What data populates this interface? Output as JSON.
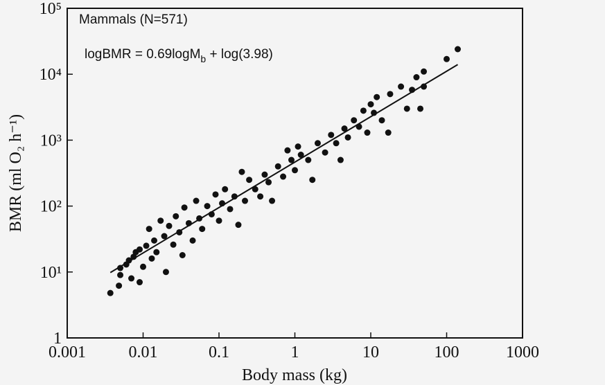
{
  "chart_data": {
    "type": "scatter",
    "title": "Mammals (N=571)",
    "equation": [
      "logBMR = 0.69logM",
      "b",
      " + log(3.98)"
    ],
    "x_label": "Body mass (kg)",
    "y_label": "BMR (ml O₂ h⁻¹)",
    "x_log": true,
    "y_log": true,
    "xlim": [
      0.001,
      1000
    ],
    "xticks": [
      0.001,
      0.01,
      0.1,
      1,
      10,
      100,
      1000
    ],
    "ylim": [
      1,
      100000
    ],
    "yticks": [
      1,
      {
        "value": 10,
        "label": "10¹"
      },
      {
        "value": 100,
        "label": "10²"
      },
      {
        "value": 1000,
        "label": "10³"
      },
      {
        "value": 10000,
        "label": "10⁴"
      },
      {
        "value": 100000,
        "label": "10⁵"
      }
    ],
    "color": "#111111",
    "fit_line": {
      "x": [
        0.0037,
        140
      ],
      "y": [
        9.8,
        14000
      ]
    },
    "x": [
      0.0037,
      0.0048,
      0.005,
      0.005,
      0.006,
      0.0065,
      0.007,
      0.0075,
      0.008,
      0.009,
      0.009,
      0.01,
      0.011,
      0.012,
      0.013,
      0.014,
      0.015,
      0.017,
      0.019,
      0.02,
      0.022,
      0.025,
      0.027,
      0.03,
      0.033,
      0.035,
      0.04,
      0.045,
      0.05,
      0.055,
      0.06,
      0.07,
      0.08,
      0.09,
      0.1,
      0.11,
      0.12,
      0.14,
      0.16,
      0.18,
      0.2,
      0.22,
      0.25,
      0.3,
      0.35,
      0.4,
      0.45,
      0.5,
      0.6,
      0.7,
      0.8,
      0.9,
      1.0,
      1.1,
      1.2,
      1.5,
      1.7,
      2,
      2.5,
      3,
      3.5,
      4,
      4.5,
      5,
      6,
      7,
      8,
      9,
      10,
      11,
      12,
      14,
      17,
      18,
      25,
      30,
      35,
      40,
      45,
      50,
      50,
      100,
      140
    ],
    "values": [
      4.8,
      6.2,
      9,
      11.5,
      13,
      15,
      8,
      17,
      20,
      7,
      22,
      12,
      25,
      45,
      16,
      30,
      20,
      60,
      35,
      10,
      50,
      26,
      70,
      40,
      18,
      95,
      55,
      30,
      120,
      65,
      45,
      100,
      75,
      150,
      60,
      110,
      180,
      90,
      140,
      52,
      330,
      120,
      250,
      180,
      140,
      300,
      230,
      120,
      400,
      280,
      700,
      500,
      350,
      800,
      600,
      500,
      250,
      900,
      650,
      1200,
      900,
      500,
      1500,
      1100,
      2000,
      1600,
      2800,
      1300,
      3500,
      2600,
      4500,
      2000,
      1300,
      5000,
      6500,
      3000,
      5800,
      9000,
      3000,
      6500,
      11000,
      17000,
      24000
    ]
  }
}
